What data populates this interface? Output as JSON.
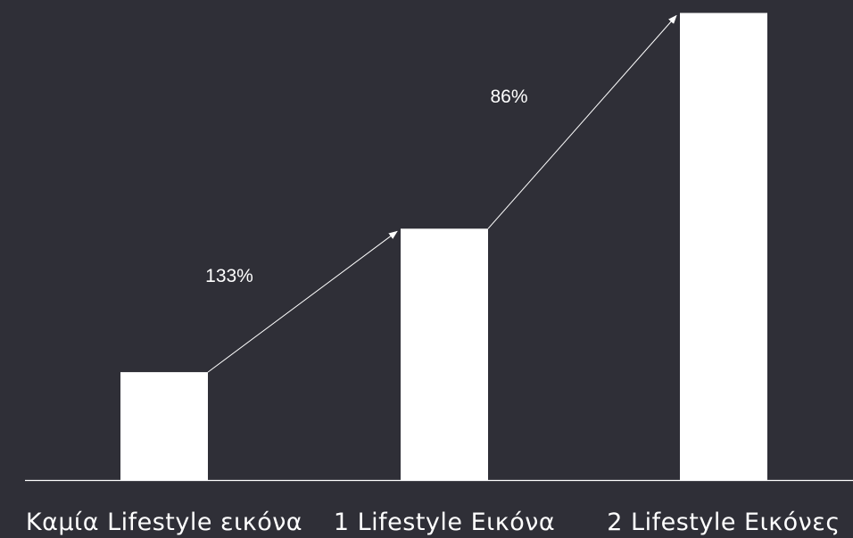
{
  "chart_data": {
    "type": "bar",
    "categories": [
      "Καμία Lifestyle εικόνα",
      "1 Lifestyle Εικόνα",
      "2 Lifestyle Εικόνες"
    ],
    "values": [
      1.0,
      2.33,
      4.33
    ],
    "ylim": [
      0,
      4.45
    ],
    "annotations": [
      {
        "from": 0,
        "to": 1,
        "label": "133%"
      },
      {
        "from": 1,
        "to": 2,
        "label": "86%"
      }
    ],
    "grid": false,
    "legend": "none"
  },
  "colors": {
    "background": "#2f2f37",
    "bar": "#ffffff",
    "axis": "#ffffff",
    "arrow": "#ffffff"
  }
}
